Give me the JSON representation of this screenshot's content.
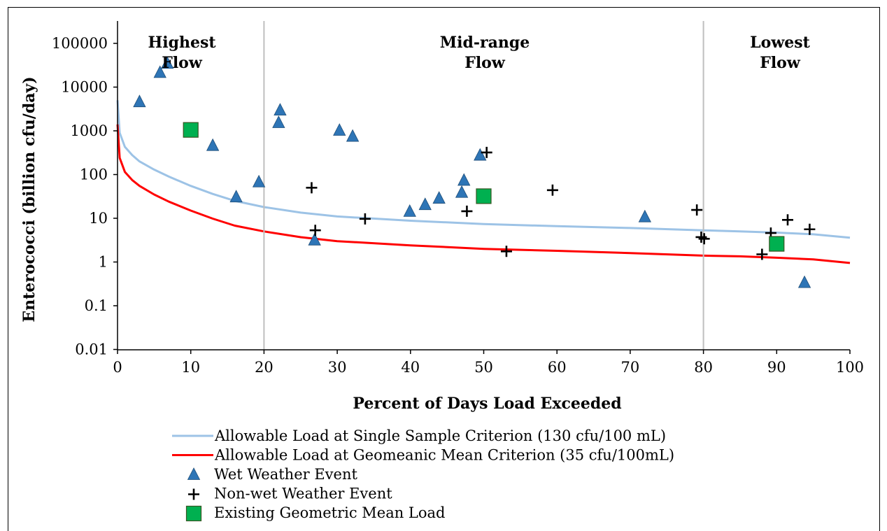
{
  "chart_data": {
    "type": "scatter",
    "xlabel": "Percent of Days Load Exceeded",
    "ylabel": "Enterococci (billion cfu/day)",
    "yscale": "log",
    "xlim": [
      0,
      100
    ],
    "ylim": [
      0.01,
      500000
    ],
    "x_ticks": [
      "0",
      "10",
      "20",
      "30",
      "40",
      "50",
      "60",
      "70",
      "80",
      "90",
      "100"
    ],
    "y_ticks": [
      "0.01",
      "0.1",
      "1",
      "10",
      "100",
      "1000",
      "10000",
      "100000"
    ],
    "x_tick_values": [
      0,
      10,
      20,
      30,
      40,
      50,
      60,
      70,
      80,
      90,
      100
    ],
    "y_tick_values": [
      0.01,
      0.1,
      1,
      10,
      100,
      1000,
      10000,
      100000
    ],
    "grid": false,
    "legend_position": "bottom",
    "regions": [
      {
        "label_lines": [
          "Highest",
          "Flow"
        ],
        "x_from": 0,
        "x_to": 20
      },
      {
        "label_lines": [
          "Mid-range",
          "Flow"
        ],
        "x_from": 20,
        "x_to": 80
      },
      {
        "label_lines": [
          "Lowest",
          "Flow"
        ],
        "x_from": 80,
        "x_to": 100
      }
    ],
    "region_dividers": [
      20,
      80
    ],
    "series": [
      {
        "name": "Allowable Load at Single Sample Criterion (130 cfu/100 mL)",
        "kind": "line",
        "color": "#9dc3e6",
        "x": [
          0,
          0.3,
          1,
          2,
          3,
          5,
          7,
          10,
          13,
          16,
          20,
          25,
          30,
          40,
          50,
          60,
          70,
          80,
          85,
          90,
          95,
          100
        ],
        "y": [
          5000,
          900,
          430,
          280,
          200,
          130,
          90,
          55,
          36,
          25,
          18,
          13.5,
          11,
          8.8,
          7.4,
          6.6,
          6.0,
          5.3,
          5.0,
          4.7,
          4.3,
          3.6
        ]
      },
      {
        "name": "Allowable Load at Geomeanic Mean Criterion (35 cfu/100mL)",
        "kind": "line",
        "color": "#ff0000",
        "x": [
          0,
          0.3,
          1,
          2,
          3,
          5,
          7,
          10,
          13,
          16,
          20,
          25,
          30,
          40,
          50,
          60,
          70,
          80,
          85,
          90,
          95,
          100
        ],
        "y": [
          1400,
          240,
          115,
          75,
          55,
          35,
          24,
          15,
          9.8,
          6.8,
          5.0,
          3.7,
          3.0,
          2.4,
          2.0,
          1.8,
          1.6,
          1.4,
          1.35,
          1.25,
          1.15,
          0.95
        ]
      },
      {
        "name": "Wet Weather Event",
        "kind": "points",
        "marker": "triangle",
        "color": "#2e75b6",
        "x": [
          3,
          5.8,
          6.8,
          13,
          16.2,
          19.3,
          22,
          22.2,
          26.9,
          30.3,
          32.1,
          39.9,
          42,
          43.9,
          47,
          47.3,
          49.5,
          72,
          93.8
        ],
        "y": [
          4500,
          21000,
          34000,
          450,
          30,
          66,
          1500,
          2900,
          3.1,
          1000,
          730,
          14,
          20,
          28,
          38,
          72,
          270,
          10.5,
          0.33
        ]
      },
      {
        "name": "Non-wet Weather Event",
        "kind": "points",
        "marker": "plus",
        "color": "#000000",
        "x": [
          26.5,
          27,
          33.8,
          47.7,
          50.4,
          53.1,
          59.4,
          79.1,
          79.7,
          80.1,
          88,
          89.2,
          91.5,
          94.5
        ],
        "y": [
          50,
          5.3,
          9.7,
          14.5,
          320,
          1.75,
          44,
          15.5,
          3.7,
          3.4,
          1.5,
          4.6,
          9.2,
          5.6
        ]
      },
      {
        "name": "Existing Geometric Mean Load",
        "kind": "points",
        "marker": "square",
        "color": "#00b050",
        "x": [
          10,
          50,
          90
        ],
        "y": [
          1050,
          32,
          2.6
        ]
      }
    ]
  }
}
